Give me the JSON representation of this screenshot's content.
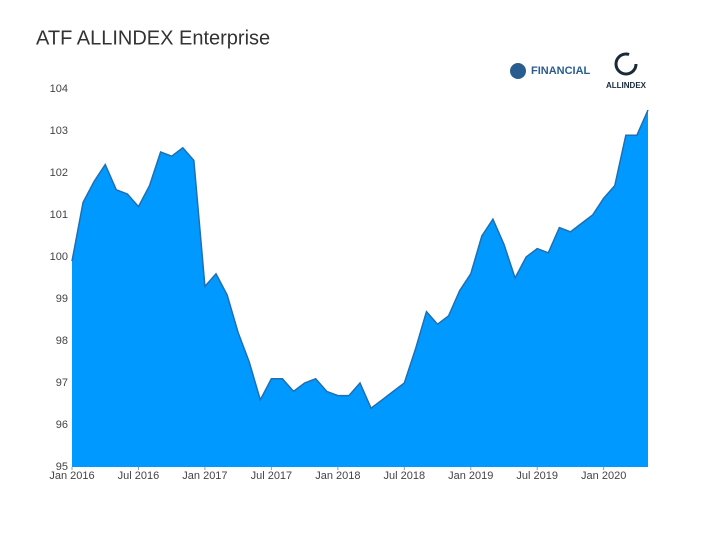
{
  "chart_data": {
    "type": "area",
    "title": "ATF ALLINDEX Enterprise",
    "logos": {
      "left": "FINANCIAL",
      "right": "ALLINDEX"
    },
    "x": [
      "2016-01",
      "2016-02",
      "2016-03",
      "2016-04",
      "2016-05",
      "2016-06",
      "2016-07",
      "2016-08",
      "2016-09",
      "2016-10",
      "2016-11",
      "2016-12",
      "2017-01",
      "2017-02",
      "2017-03",
      "2017-04",
      "2017-05",
      "2017-06",
      "2017-07",
      "2017-08",
      "2017-09",
      "2017-10",
      "2017-11",
      "2017-12",
      "2018-01",
      "2018-02",
      "2018-03",
      "2018-04",
      "2018-05",
      "2018-06",
      "2018-07",
      "2018-08",
      "2018-09",
      "2018-10",
      "2018-11",
      "2018-12",
      "2019-01",
      "2019-02",
      "2019-03",
      "2019-04",
      "2019-05",
      "2019-06",
      "2019-07",
      "2019-08",
      "2019-09",
      "2019-10",
      "2019-11",
      "2019-12",
      "2020-01",
      "2020-02",
      "2020-03",
      "2020-04",
      "2020-05"
    ],
    "series": [
      {
        "name": "ATF ALLINDEX Enterprise",
        "color": "#0099ff",
        "line_color": "#1f6fb4",
        "values": [
          99.9,
          101.3,
          101.8,
          102.2,
          101.6,
          101.5,
          101.2,
          101.7,
          102.5,
          102.4,
          102.6,
          102.3,
          99.3,
          99.6,
          99.1,
          98.2,
          97.5,
          96.6,
          97.1,
          97.1,
          96.8,
          97.0,
          97.1,
          96.8,
          96.7,
          96.7,
          97.0,
          96.4,
          96.6,
          96.8,
          97.0,
          97.8,
          98.7,
          98.4,
          98.6,
          99.2,
          99.6,
          100.5,
          100.9,
          100.3,
          99.5,
          100.0,
          100.2,
          100.1,
          100.7,
          100.6,
          100.8,
          101.0,
          101.4,
          101.7,
          102.9,
          102.9,
          103.5
        ]
      }
    ],
    "xlim": [
      "2016-01",
      "2020-05"
    ],
    "xticks": [
      {
        "value": "2016-01",
        "label": "Jan 2016"
      },
      {
        "value": "2016-07",
        "label": "Jul 2016"
      },
      {
        "value": "2017-01",
        "label": "Jan 2017"
      },
      {
        "value": "2017-07",
        "label": "Jul 2017"
      },
      {
        "value": "2018-01",
        "label": "Jan 2018"
      },
      {
        "value": "2018-07",
        "label": "Jul 2018"
      },
      {
        "value": "2019-01",
        "label": "Jan 2019"
      },
      {
        "value": "2019-07",
        "label": "Jul 2019"
      },
      {
        "value": "2020-01",
        "label": "Jan 2020"
      }
    ],
    "ylim": [
      95,
      104
    ],
    "yticks": [
      95,
      96,
      97,
      98,
      99,
      100,
      101,
      102,
      103,
      104
    ],
    "grid": false
  }
}
